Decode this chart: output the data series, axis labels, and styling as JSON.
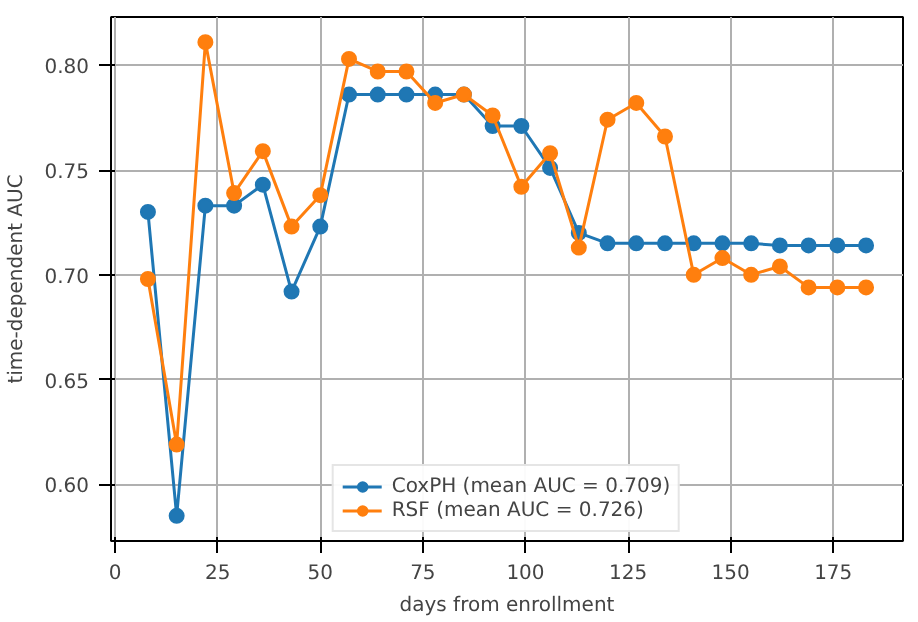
{
  "chart_data": {
    "type": "line",
    "xlabel": "days from enrollment",
    "ylabel": "time-dependent AUC",
    "x": [
      8,
      15,
      22,
      29,
      36,
      43,
      50,
      57,
      64,
      71,
      78,
      85,
      92,
      99,
      106,
      113,
      120,
      127,
      134,
      141,
      148,
      155,
      162,
      169,
      176,
      183
    ],
    "series": [
      {
        "name": "CoxPH (mean AUC = 0.709)",
        "color": "#1f77b4",
        "values": [
          0.73,
          0.585,
          0.733,
          0.733,
          0.743,
          0.692,
          0.723,
          0.786,
          0.786,
          0.786,
          0.786,
          0.786,
          0.771,
          0.771,
          0.751,
          0.72,
          0.715,
          0.715,
          0.715,
          0.715,
          0.715,
          0.715,
          0.714,
          0.714,
          0.714,
          0.714
        ]
      },
      {
        "name": "RSF (mean AUC = 0.726)",
        "color": "#ff7f0e",
        "values": [
          0.698,
          0.619,
          0.811,
          0.739,
          0.759,
          0.723,
          0.738,
          0.803,
          0.797,
          0.797,
          0.782,
          0.786,
          0.776,
          0.742,
          0.758,
          0.713,
          0.774,
          0.782,
          0.766,
          0.7,
          0.708,
          0.7,
          0.704,
          0.694,
          0.694,
          0.694
        ]
      }
    ],
    "xlim": [
      -1,
      192
    ],
    "ylim": [
      0.573,
      0.823
    ],
    "xticks": [
      0,
      25,
      50,
      75,
      100,
      125,
      150,
      175
    ],
    "yticks": [
      {
        "value": 0.6,
        "label": "0.60"
      },
      {
        "value": 0.65,
        "label": "0.65"
      },
      {
        "value": 0.7,
        "label": "0.70"
      },
      {
        "value": 0.75,
        "label": "0.75"
      },
      {
        "value": 0.8,
        "label": "0.80"
      }
    ],
    "grid": true,
    "legend": "bottom",
    "marker": "circle",
    "line_style": "solid"
  }
}
